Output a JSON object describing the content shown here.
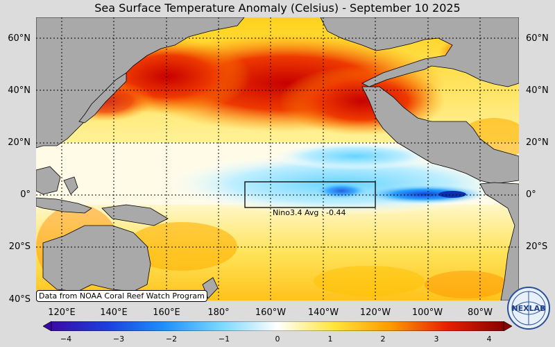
{
  "title": "Sea Surface Temperature Anomaly (Celsius) - September 10 2025",
  "lat_labels": [
    "60°N",
    "40°N",
    "20°N",
    "0°",
    "20°S",
    "40°S"
  ],
  "lon_labels": [
    "120°E",
    "140°E",
    "160°E",
    "180°",
    "160°W",
    "140°W",
    "120°W",
    "100°W",
    "80°W"
  ],
  "credit": "Data from NOAA Coral Reef Watch Program",
  "nino": {
    "label": "Nino3.4 Avg : -0.44",
    "region_lon": [
      "170°W",
      "120°W"
    ],
    "region_lat": [
      "5°N",
      "5°S"
    ]
  },
  "colorbar": {
    "ticks": [
      "−4",
      "−3",
      "−2",
      "−1",
      "0",
      "1",
      "2",
      "3",
      "4"
    ],
    "colors": [
      "#3a0aa8",
      "#1c3fe0",
      "#1e90ff",
      "#7ad8ff",
      "#ffffff",
      "#ffe53a",
      "#ff9a00",
      "#e62000",
      "#8b0000"
    ]
  },
  "logo_text": "NEXLAB",
  "land_color": "#a9a9a9"
}
